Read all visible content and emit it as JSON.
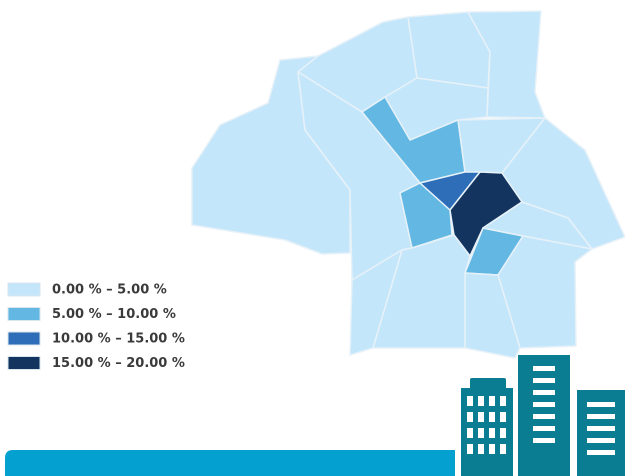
{
  "legend": {
    "items": [
      {
        "label": "0.00 % – 5.00 %",
        "color": "#c4e6fb"
      },
      {
        "label": "5.00 % – 10.00 %",
        "color": "#62b8e3"
      },
      {
        "label": "10.00 % – 15.00 %",
        "color": "#2e6db8"
      },
      {
        "label": "15.00 % – 20.00 %",
        "color": "#143460"
      }
    ]
  }
}
